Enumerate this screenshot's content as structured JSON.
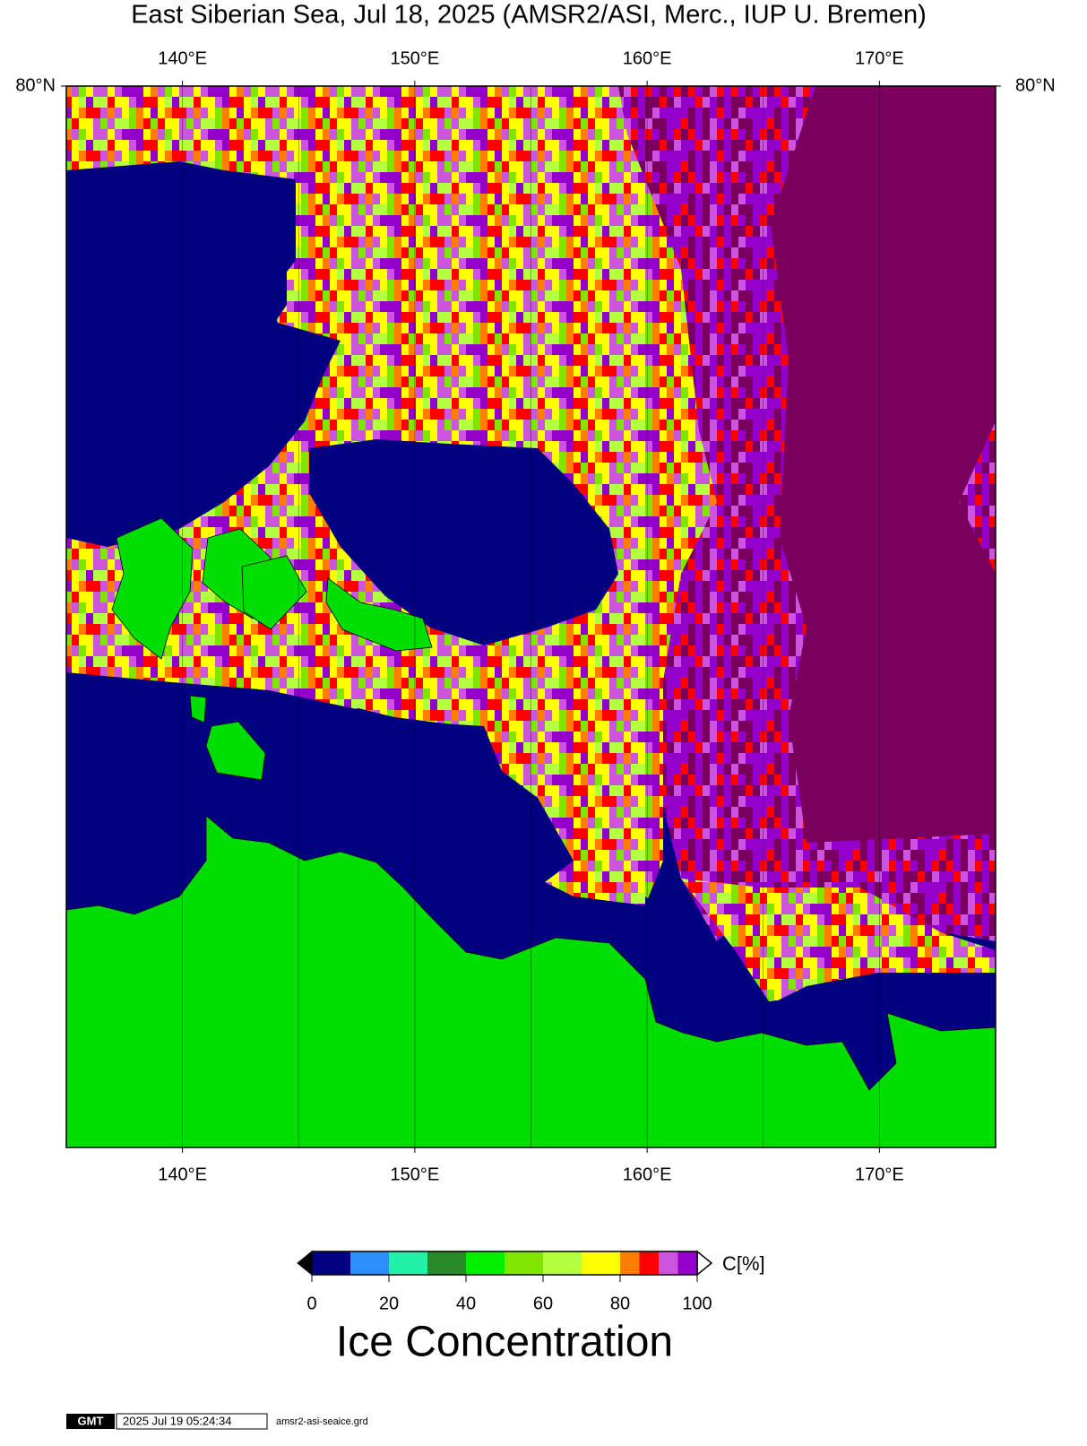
{
  "header": {
    "title": "East Siberian Sea, Jul 18, 2025 (AMSR2/ASI, Merc., IUP U. Bremen)"
  },
  "map": {
    "lon_range": [
      135,
      175
    ],
    "lon_ticks": [
      {
        "value": 140,
        "label": "140°E"
      },
      {
        "value": 150,
        "label": "150°E"
      },
      {
        "value": 160,
        "label": "160°E"
      },
      {
        "value": 170,
        "label": "170°E"
      }
    ],
    "lat_ticks": [
      {
        "value": 80,
        "label": "80°N"
      }
    ],
    "meridians": [
      140,
      145,
      150,
      155,
      160,
      165,
      170
    ]
  },
  "colorbar": {
    "range": [
      0,
      100
    ],
    "ticks": [
      0,
      20,
      40,
      60,
      80,
      100
    ],
    "bounds": [
      0,
      10,
      20,
      30,
      40,
      50,
      60,
      70,
      80,
      85,
      90,
      95,
      100
    ],
    "colors": [
      "#000080",
      "#2b8fff",
      "#22f0a8",
      "#2a8a2a",
      "#00ee00",
      "#80e600",
      "#b4ff40",
      "#ffff00",
      "#ff8000",
      "#ff0000",
      "#cc55dd",
      "#9400cc"
    ],
    "unit": "C[%]",
    "title": "Ice Concentration"
  },
  "footer": {
    "logo": "GMT",
    "timestamp": "2025 Jul 19 05:24:34",
    "file": "amsr2-asi-seaice.grd"
  }
}
